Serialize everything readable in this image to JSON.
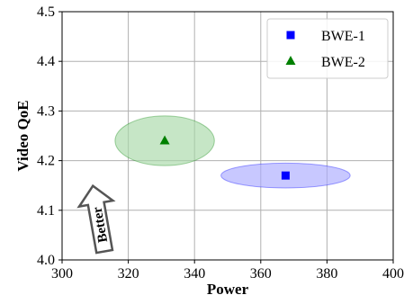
{
  "chart_data": {
    "type": "scatter",
    "xlabel": "Power",
    "ylabel": "Video QoE",
    "xlim": [
      300,
      400
    ],
    "ylim": [
      4.0,
      4.5
    ],
    "x_ticks": [
      "300",
      "320",
      "340",
      "360",
      "380",
      "400"
    ],
    "y_ticks": [
      "4.0",
      "4.1",
      "4.2",
      "4.3",
      "4.4",
      "4.5"
    ],
    "grid": true,
    "legend_position": "top-right",
    "series": [
      {
        "name": "BWE-1",
        "marker": "square",
        "color": "#0000ff",
        "x": 367.5,
        "y": 4.17,
        "x_spread": [
          348,
          387
        ],
        "y_spread": [
          4.145,
          4.195
        ],
        "ellipse_color": "#aaaaff"
      },
      {
        "name": "BWE-2",
        "marker": "triangle",
        "color": "#008000",
        "x": 331,
        "y": 4.24,
        "x_spread": [
          316,
          346
        ],
        "y_spread": [
          4.19,
          4.29
        ],
        "ellipse_color": "#a8d8a8"
      }
    ],
    "annotations": [
      {
        "text": "Better",
        "arrow_direction": "up-left",
        "x": 311,
        "y": 4.085
      }
    ]
  }
}
